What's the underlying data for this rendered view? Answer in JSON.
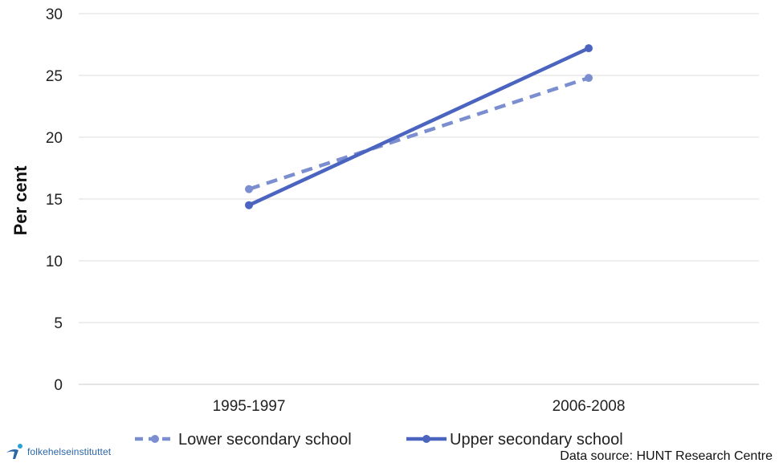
{
  "chart_data": {
    "type": "line",
    "categories": [
      "1995-1997",
      "2006-2008"
    ],
    "series": [
      {
        "name": "Lower secondary school",
        "values": [
          15.8,
          24.8
        ],
        "color": "#7b8fd0",
        "style": "dashed"
      },
      {
        "name": "Upper secondary school",
        "values": [
          14.5,
          27.2
        ],
        "color": "#4a64c0",
        "style": "solid"
      }
    ],
    "title": "",
    "xlabel": "",
    "ylabel": "Per cent",
    "ylim": [
      0,
      30
    ],
    "yticks": [
      0,
      5,
      10,
      15,
      20,
      25,
      30
    ],
    "grid": true,
    "legend_position": "bottom"
  },
  "footer": {
    "logo_text": "folkehelseinstituttet",
    "source": "Data source: HUNT Research Centre"
  }
}
